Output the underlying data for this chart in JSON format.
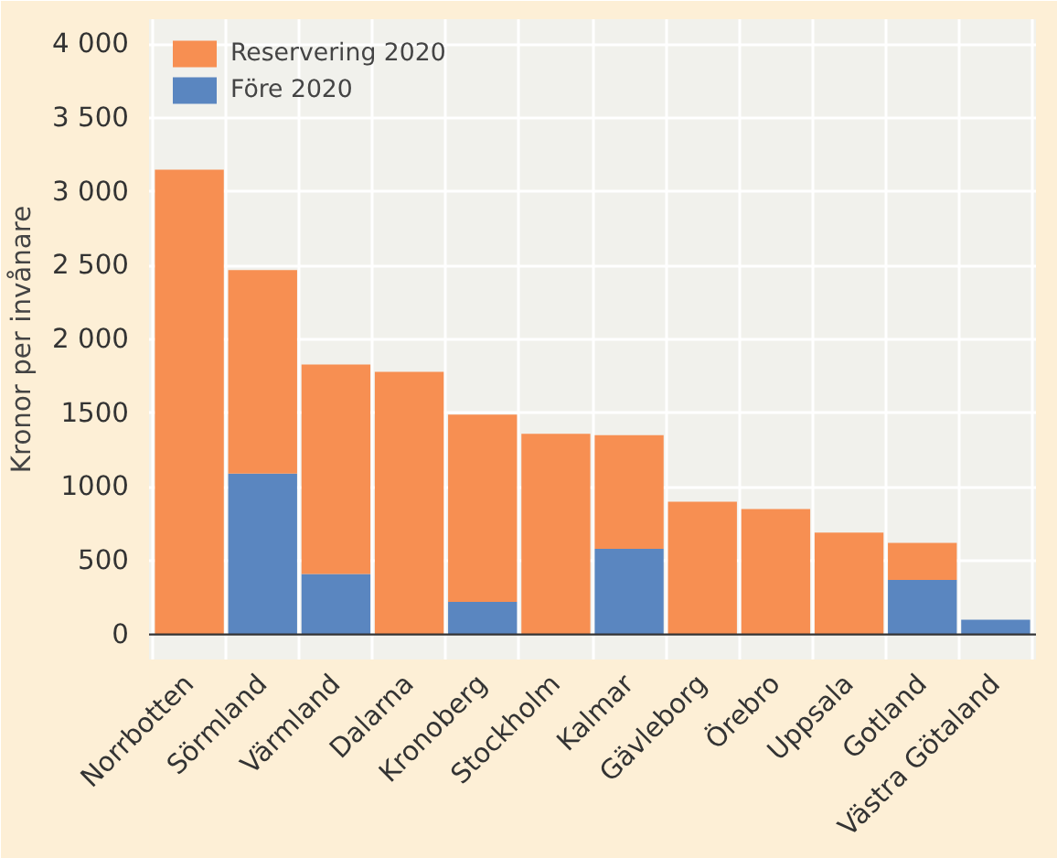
{
  "chart_data": {
    "type": "bar",
    "stacked": true,
    "ylabel": "Kronor per invånare",
    "categories": [
      "Norrbotten",
      "Sörmland",
      "Värmland",
      "Dalarna",
      "Kronoberg",
      "Stockholm",
      "Kalmar",
      "Gävleborg",
      "Örebro",
      "Uppsala",
      "Gotland",
      "Västra Götaland"
    ],
    "series": [
      {
        "name": "Före 2020",
        "color": "#5a86c0",
        "values": [
          0,
          1090,
          410,
          0,
          220,
          0,
          580,
          0,
          0,
          0,
          370,
          100
        ]
      },
      {
        "name": "Reservering 2020",
        "color": "#f78f52",
        "values": [
          3150,
          1380,
          1420,
          1780,
          1270,
          1360,
          770,
          900,
          850,
          690,
          250,
          0
        ]
      }
    ],
    "ylim": [
      -170,
      4170
    ],
    "yticks": [
      0,
      500,
      1000,
      1500,
      {
        "value": 2000,
        "label": "2 000"
      },
      {
        "value": 2500,
        "label": "2 500"
      },
      {
        "value": 3000,
        "label": "3 000"
      },
      {
        "value": 3500,
        "label": "3 500"
      },
      {
        "value": 4000,
        "label": "4 000"
      }
    ],
    "ref_lines": [
      {
        "axis": "y",
        "value": 0,
        "color": "#333333"
      }
    ],
    "grid": true,
    "legend": "top left"
  }
}
